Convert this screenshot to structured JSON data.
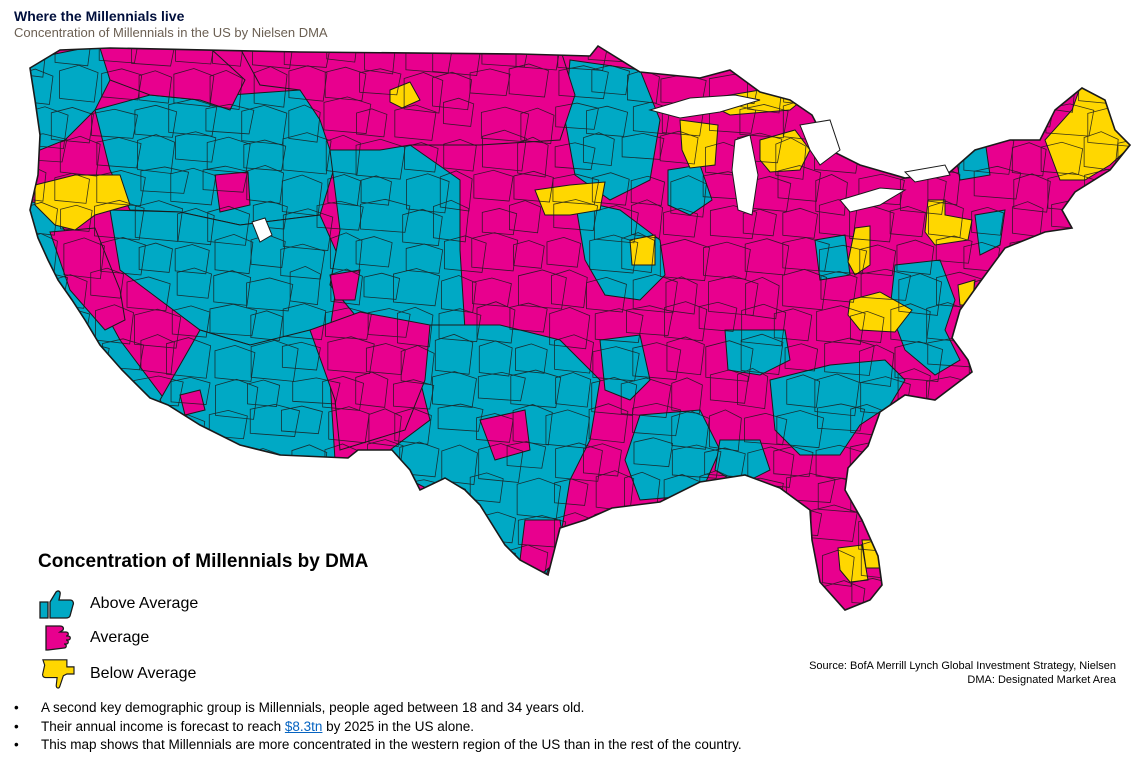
{
  "title": "Where the Millennials live",
  "subtitle": "Concentration of Millennials in the US by Nielsen DMA",
  "colors": {
    "above": "#00a9c5",
    "average": "#e8008e",
    "below": "#ffd700",
    "border": "#1a1a1a"
  },
  "legend": {
    "title": "Concentration of Millennials by DMA",
    "items": [
      {
        "label": "Above Average",
        "icon": "thumbs-up-icon"
      },
      {
        "label": "Average",
        "icon": "thumbs-sideways-icon"
      },
      {
        "label": "Below Average",
        "icon": "thumbs-down-icon"
      }
    ]
  },
  "source": {
    "line1": "Source: BofA Merrill Lynch Global Investment Strategy, Nielsen",
    "line2": "DMA: Designated Market Area"
  },
  "bullets": {
    "b1": "A second key demographic group is Millennials, people aged between 18 and 34 years old.",
    "b2_pre": "Their annual income is forecast to reach ",
    "b2_link": "$8.3tn",
    "b2_post": " by 2025 in the US alone.",
    "b3": "This map shows that Millennials are more concentrated in the western region of the US than in the rest of the country."
  }
}
